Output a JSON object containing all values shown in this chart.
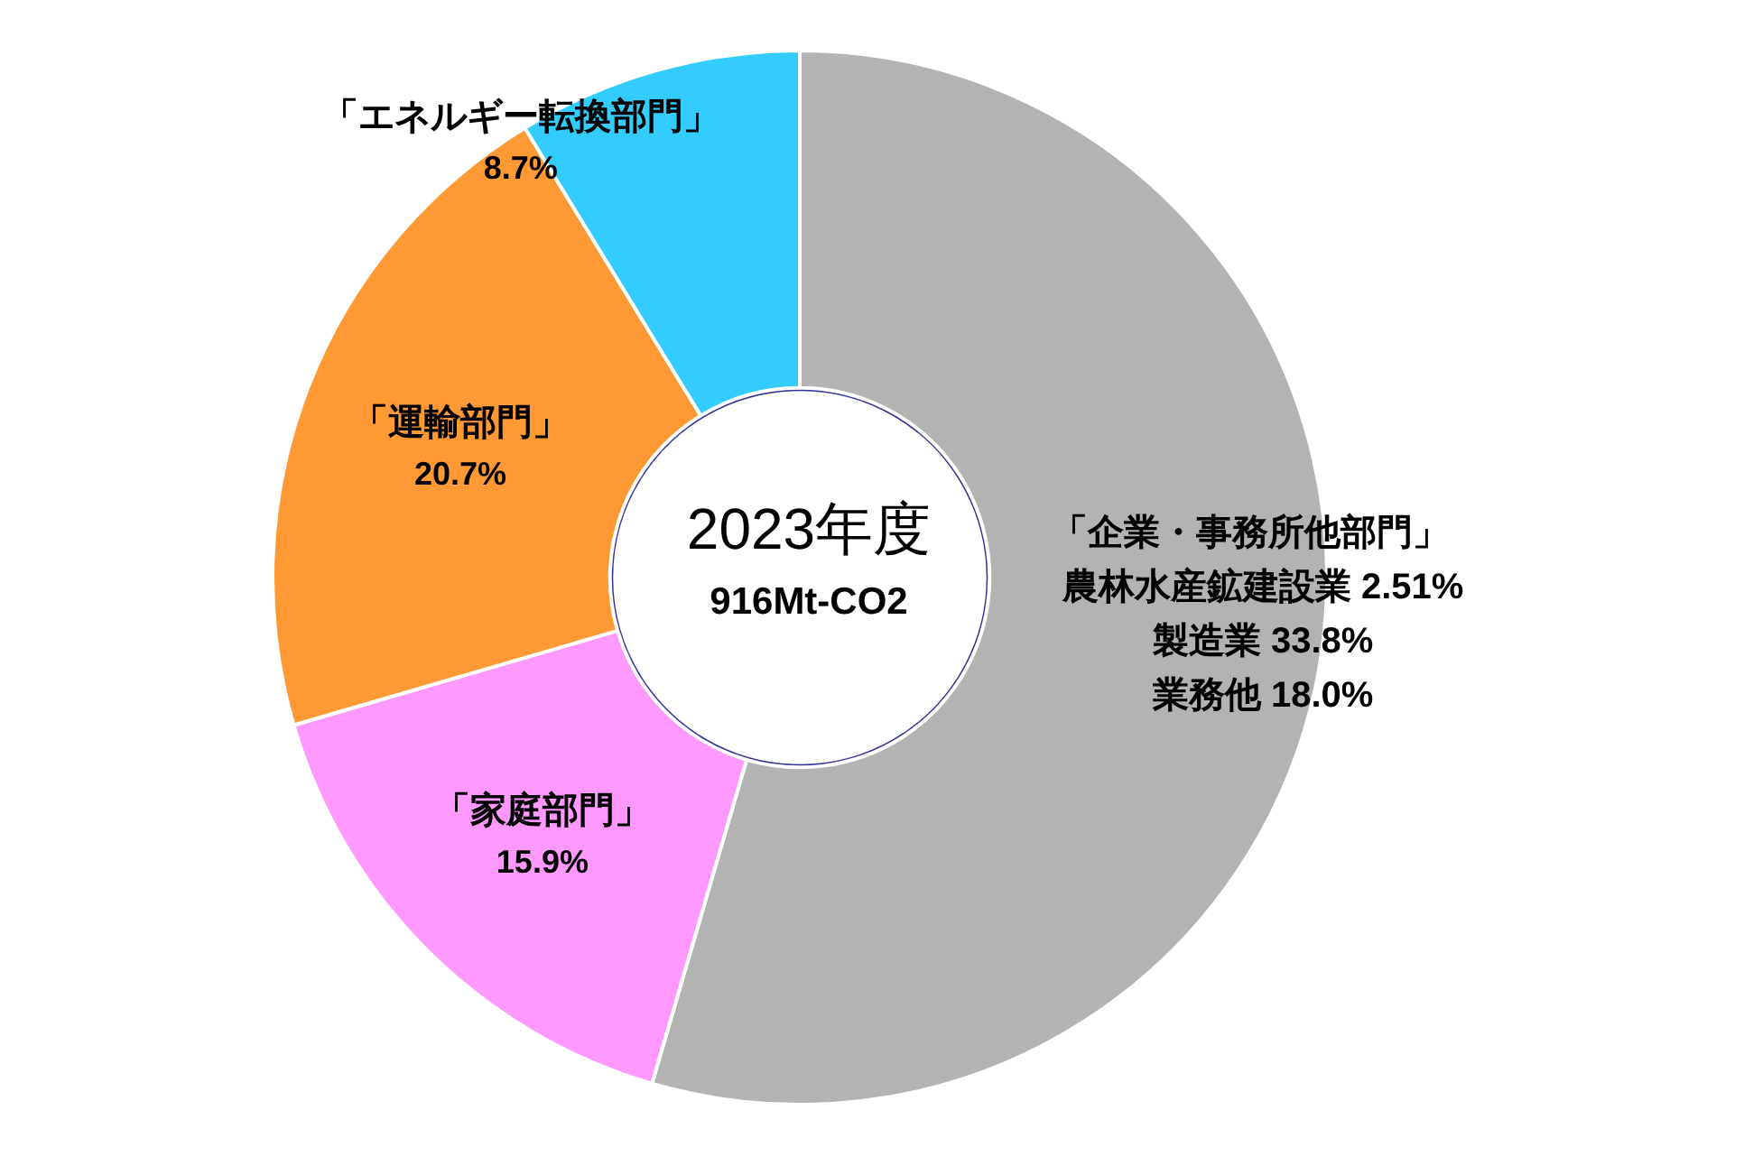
{
  "chart_data": {
    "type": "donut",
    "title": "2023年度",
    "subtitle": "916Mt-CO2",
    "categories": [
      "「企業・事務所他部門」",
      "「家庭部門」",
      "「運輸部門」",
      "「エネルギー転換部門」"
    ],
    "values": [
      54.31,
      15.9,
      20.7,
      8.7
    ],
    "colors": [
      "#b3b3b3",
      "#ff99ff",
      "#ff9933",
      "#33ccff"
    ],
    "value_labels": [
      null,
      "15.9%",
      "20.7%",
      "8.7%"
    ],
    "annotations": [
      "農林水産鉱建設業 2.51%",
      "製造業 33.8%",
      "業務他 18.0%"
    ],
    "legend": false
  }
}
